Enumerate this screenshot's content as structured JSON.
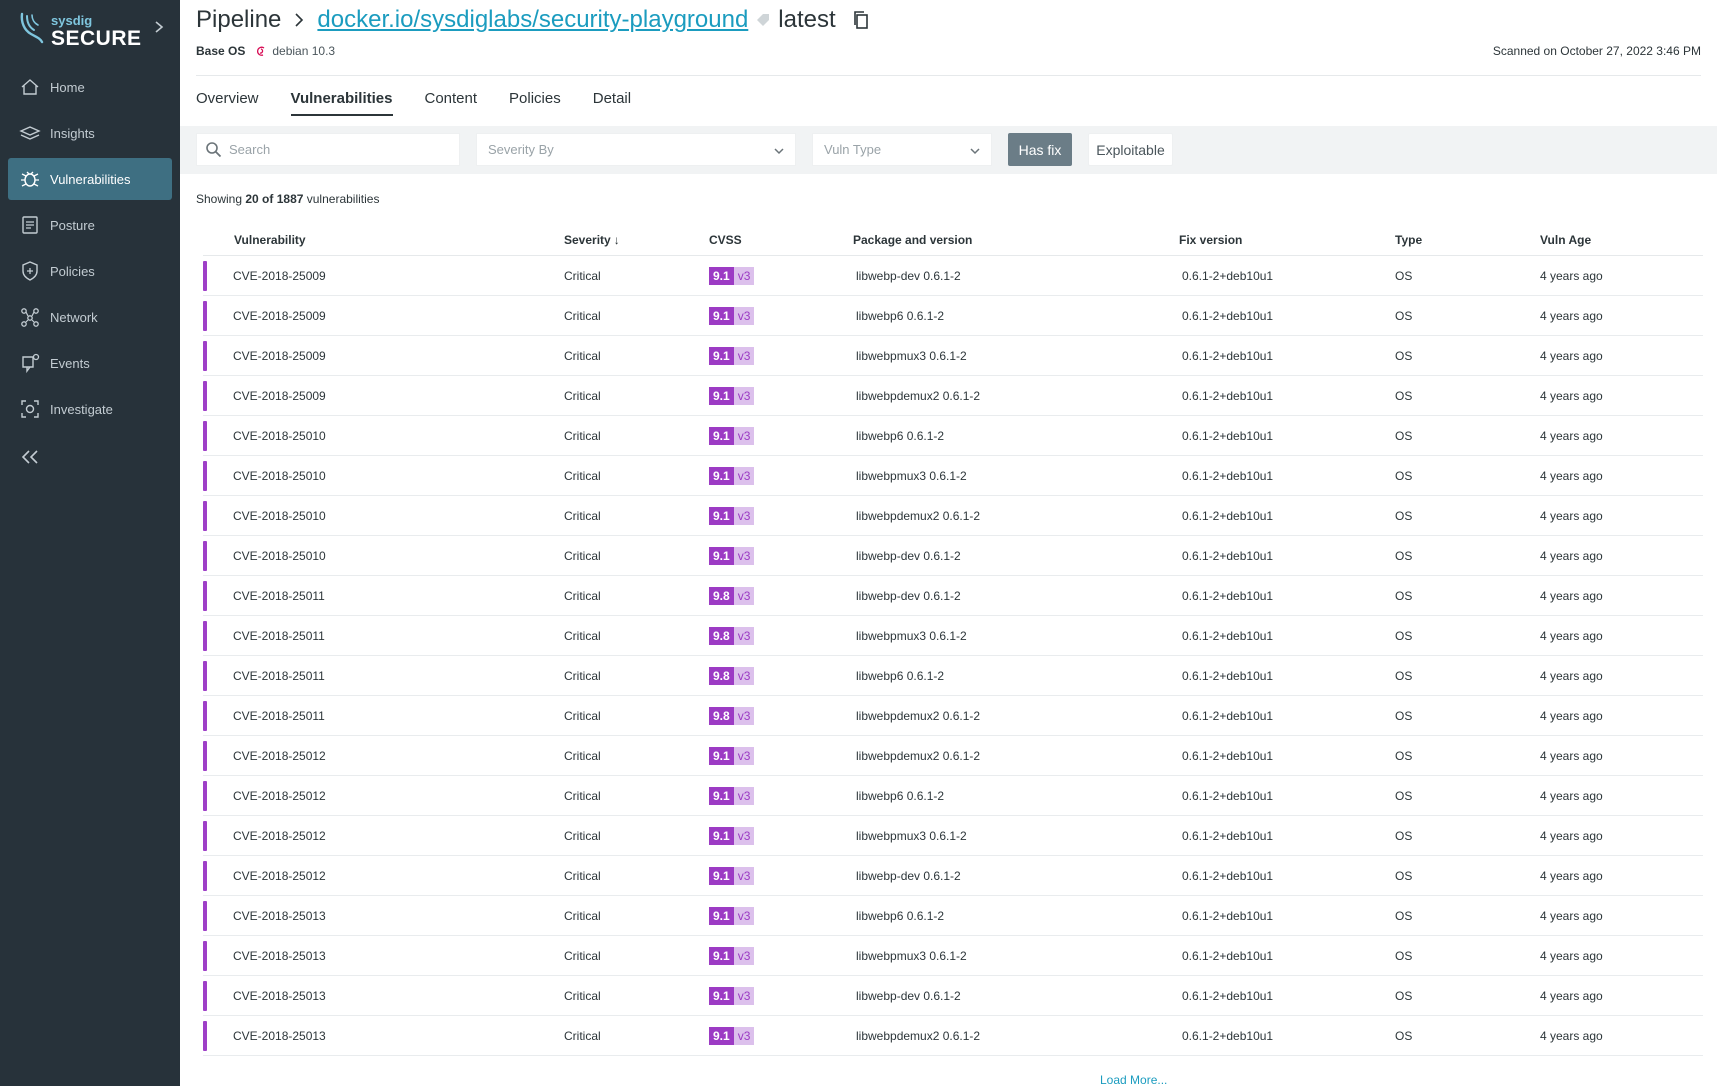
{
  "brand": {
    "small": "sysdig",
    "big": "SECURE"
  },
  "nav": {
    "items": [
      {
        "label": "Home",
        "icon": "home-icon",
        "active": false
      },
      {
        "label": "Insights",
        "icon": "insights-icon",
        "active": false
      },
      {
        "label": "Vulnerabilities",
        "icon": "bug-icon",
        "active": true
      },
      {
        "label": "Posture",
        "icon": "posture-icon",
        "active": false
      },
      {
        "label": "Policies",
        "icon": "shield-icon",
        "active": false
      },
      {
        "label": "Network",
        "icon": "network-icon",
        "active": false
      },
      {
        "label": "Events",
        "icon": "events-icon",
        "active": false
      },
      {
        "label": "Investigate",
        "icon": "investigate-icon",
        "active": false
      }
    ]
  },
  "header": {
    "root": "Pipeline",
    "image": "docker.io/sysdiglabs/security-playground",
    "tag": "latest",
    "base_os_label": "Base OS",
    "base_os": "debian 10.3",
    "scanned": "Scanned on October 27, 2022 3:46 PM"
  },
  "tabs": [
    "Overview",
    "Vulnerabilities",
    "Content",
    "Policies",
    "Detail"
  ],
  "filters": {
    "search_placeholder": "Search",
    "severity_by": "Severity By",
    "vuln_type": "Vuln Type",
    "has_fix": "Has fix",
    "exploitable": "Exploitable"
  },
  "showing": {
    "prefix": "Showing ",
    "count": "20 of 1887",
    "suffix": " vulnerabilities"
  },
  "columns": [
    "Vulnerability",
    "Severity",
    "CVSS",
    "Package and version",
    "Fix version",
    "Type",
    "Vuln Age"
  ],
  "sort_indicator": "↓",
  "rows": [
    {
      "vuln": "CVE-2018-25009",
      "severity": "Critical",
      "score": "9.1",
      "ver": "v3",
      "pkg": "libwebp-dev 0.6.1-2",
      "fix": "0.6.1-2+deb10u1",
      "type": "OS",
      "age": "4 years ago"
    },
    {
      "vuln": "CVE-2018-25009",
      "severity": "Critical",
      "score": "9.1",
      "ver": "v3",
      "pkg": "libwebp6 0.6.1-2",
      "fix": "0.6.1-2+deb10u1",
      "type": "OS",
      "age": "4 years ago"
    },
    {
      "vuln": "CVE-2018-25009",
      "severity": "Critical",
      "score": "9.1",
      "ver": "v3",
      "pkg": "libwebpmux3 0.6.1-2",
      "fix": "0.6.1-2+deb10u1",
      "type": "OS",
      "age": "4 years ago"
    },
    {
      "vuln": "CVE-2018-25009",
      "severity": "Critical",
      "score": "9.1",
      "ver": "v3",
      "pkg": "libwebpdemux2 0.6.1-2",
      "fix": "0.6.1-2+deb10u1",
      "type": "OS",
      "age": "4 years ago"
    },
    {
      "vuln": "CVE-2018-25010",
      "severity": "Critical",
      "score": "9.1",
      "ver": "v3",
      "pkg": "libwebp6 0.6.1-2",
      "fix": "0.6.1-2+deb10u1",
      "type": "OS",
      "age": "4 years ago"
    },
    {
      "vuln": "CVE-2018-25010",
      "severity": "Critical",
      "score": "9.1",
      "ver": "v3",
      "pkg": "libwebpmux3 0.6.1-2",
      "fix": "0.6.1-2+deb10u1",
      "type": "OS",
      "age": "4 years ago"
    },
    {
      "vuln": "CVE-2018-25010",
      "severity": "Critical",
      "score": "9.1",
      "ver": "v3",
      "pkg": "libwebpdemux2 0.6.1-2",
      "fix": "0.6.1-2+deb10u1",
      "type": "OS",
      "age": "4 years ago"
    },
    {
      "vuln": "CVE-2018-25010",
      "severity": "Critical",
      "score": "9.1",
      "ver": "v3",
      "pkg": "libwebp-dev 0.6.1-2",
      "fix": "0.6.1-2+deb10u1",
      "type": "OS",
      "age": "4 years ago"
    },
    {
      "vuln": "CVE-2018-25011",
      "severity": "Critical",
      "score": "9.8",
      "ver": "v3",
      "pkg": "libwebp-dev 0.6.1-2",
      "fix": "0.6.1-2+deb10u1",
      "type": "OS",
      "age": "4 years ago"
    },
    {
      "vuln": "CVE-2018-25011",
      "severity": "Critical",
      "score": "9.8",
      "ver": "v3",
      "pkg": "libwebpmux3 0.6.1-2",
      "fix": "0.6.1-2+deb10u1",
      "type": "OS",
      "age": "4 years ago"
    },
    {
      "vuln": "CVE-2018-25011",
      "severity": "Critical",
      "score": "9.8",
      "ver": "v3",
      "pkg": "libwebp6 0.6.1-2",
      "fix": "0.6.1-2+deb10u1",
      "type": "OS",
      "age": "4 years ago"
    },
    {
      "vuln": "CVE-2018-25011",
      "severity": "Critical",
      "score": "9.8",
      "ver": "v3",
      "pkg": "libwebpdemux2 0.6.1-2",
      "fix": "0.6.1-2+deb10u1",
      "type": "OS",
      "age": "4 years ago"
    },
    {
      "vuln": "CVE-2018-25012",
      "severity": "Critical",
      "score": "9.1",
      "ver": "v3",
      "pkg": "libwebpdemux2 0.6.1-2",
      "fix": "0.6.1-2+deb10u1",
      "type": "OS",
      "age": "4 years ago"
    },
    {
      "vuln": "CVE-2018-25012",
      "severity": "Critical",
      "score": "9.1",
      "ver": "v3",
      "pkg": "libwebp6 0.6.1-2",
      "fix": "0.6.1-2+deb10u1",
      "type": "OS",
      "age": "4 years ago"
    },
    {
      "vuln": "CVE-2018-25012",
      "severity": "Critical",
      "score": "9.1",
      "ver": "v3",
      "pkg": "libwebpmux3 0.6.1-2",
      "fix": "0.6.1-2+deb10u1",
      "type": "OS",
      "age": "4 years ago"
    },
    {
      "vuln": "CVE-2018-25012",
      "severity": "Critical",
      "score": "9.1",
      "ver": "v3",
      "pkg": "libwebp-dev 0.6.1-2",
      "fix": "0.6.1-2+deb10u1",
      "type": "OS",
      "age": "4 years ago"
    },
    {
      "vuln": "CVE-2018-25013",
      "severity": "Critical",
      "score": "9.1",
      "ver": "v3",
      "pkg": "libwebp6 0.6.1-2",
      "fix": "0.6.1-2+deb10u1",
      "type": "OS",
      "age": "4 years ago"
    },
    {
      "vuln": "CVE-2018-25013",
      "severity": "Critical",
      "score": "9.1",
      "ver": "v3",
      "pkg": "libwebpmux3 0.6.1-2",
      "fix": "0.6.1-2+deb10u1",
      "type": "OS",
      "age": "4 years ago"
    },
    {
      "vuln": "CVE-2018-25013",
      "severity": "Critical",
      "score": "9.1",
      "ver": "v3",
      "pkg": "libwebp-dev 0.6.1-2",
      "fix": "0.6.1-2+deb10u1",
      "type": "OS",
      "age": "4 years ago"
    },
    {
      "vuln": "CVE-2018-25013",
      "severity": "Critical",
      "score": "9.1",
      "ver": "v3",
      "pkg": "libwebpdemux2 0.6.1-2",
      "fix": "0.6.1-2+deb10u1",
      "type": "OS",
      "age": "4 years ago"
    }
  ],
  "load_more": "Load More...",
  "colors": {
    "sidebar": "#27323a",
    "active_nav": "#3e6f82",
    "critical": "#9e3fc7",
    "link": "#1b9cbf"
  }
}
